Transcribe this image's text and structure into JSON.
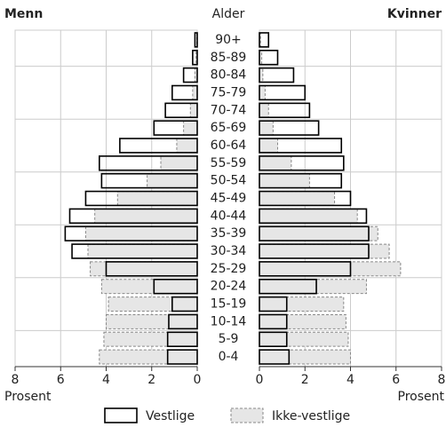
{
  "chart_data": {
    "type": "pyramid",
    "left_title": "Menn",
    "center_title": "Alder",
    "right_title": "Kvinner",
    "x_label_left": "Prosent",
    "x_label_right": "Prosent",
    "categories": [
      "90+",
      "85-89",
      "80-84",
      "75-79",
      "70-74",
      "65-69",
      "60-64",
      "55-59",
      "50-54",
      "45-49",
      "40-44",
      "35-39",
      "30-34",
      "25-29",
      "20-24",
      "15-19",
      "10-14",
      "5-9",
      "0-4"
    ],
    "series": [
      {
        "name": "Vestlige",
        "color": "#ffffff",
        "stroke": "#000000",
        "values_men": [
          0.1,
          0.2,
          0.6,
          1.1,
          1.4,
          1.9,
          3.4,
          4.3,
          4.2,
          4.9,
          5.6,
          5.8,
          5.5,
          4.0,
          1.9,
          1.1,
          1.25,
          1.3,
          1.3
        ],
        "values_women": [
          0.4,
          0.8,
          1.5,
          2.0,
          2.2,
          2.6,
          3.6,
          3.7,
          3.6,
          4.0,
          4.7,
          4.8,
          4.8,
          4.0,
          2.5,
          1.2,
          1.2,
          1.2,
          1.3
        ]
      },
      {
        "name": "Ikke-vestlige",
        "color": "#e6e6e6",
        "stroke": "#888888",
        "values_men": [
          0.02,
          0.05,
          0.1,
          0.2,
          0.3,
          0.6,
          0.9,
          1.6,
          2.2,
          3.5,
          4.5,
          4.9,
          4.8,
          4.7,
          4.2,
          3.9,
          4.0,
          4.1,
          4.3
        ],
        "values_women": [
          0.05,
          0.1,
          0.15,
          0.25,
          0.4,
          0.6,
          0.8,
          1.4,
          2.2,
          3.3,
          4.3,
          5.2,
          5.7,
          6.2,
          4.7,
          3.7,
          3.8,
          3.9,
          4.0
        ]
      }
    ],
    "xlim": [
      0,
      8
    ],
    "xticks": [
      0,
      2,
      4,
      6,
      8
    ],
    "grid": true
  }
}
